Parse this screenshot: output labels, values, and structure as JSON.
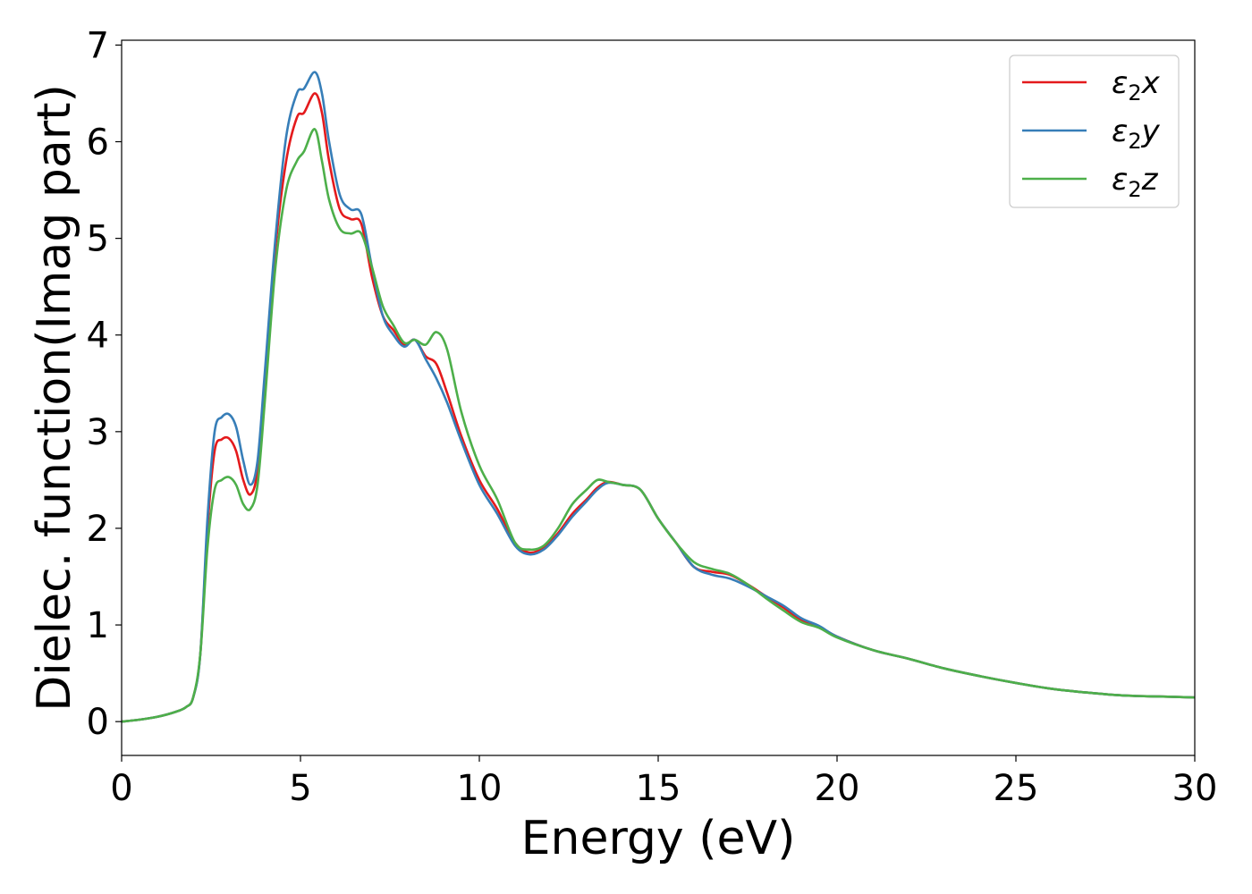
{
  "chart_data": {
    "type": "line",
    "xlabel": "Energy (eV)",
    "ylabel": "Dielec. function(Imag part)",
    "xlim": [
      0,
      30
    ],
    "ylim": [
      -0.35,
      7.05
    ],
    "xticks": [
      "0",
      "5",
      "10",
      "15",
      "20",
      "25",
      "30"
    ],
    "yticks": [
      "0",
      "1",
      "2",
      "3",
      "4",
      "5",
      "6",
      "7"
    ],
    "grid": false,
    "legend_position": "top-right",
    "series": [
      {
        "name": "ε₂x",
        "legend_base": "ε",
        "legend_sub": "2",
        "legend_tail": "x",
        "color": "#e41a1c",
        "x": [
          0,
          0.5,
          1.0,
          1.5,
          1.8,
          2.0,
          2.2,
          2.4,
          2.6,
          2.8,
          3.0,
          3.2,
          3.4,
          3.6,
          3.8,
          4.0,
          4.3,
          4.6,
          4.9,
          5.1,
          5.4,
          5.6,
          5.8,
          6.1,
          6.4,
          6.7,
          7.0,
          7.3,
          7.6,
          7.9,
          8.2,
          8.5,
          8.8,
          9.1,
          9.5,
          10.0,
          10.5,
          11.0,
          11.4,
          11.8,
          12.2,
          12.6,
          13.0,
          13.3,
          13.6,
          14.0,
          14.5,
          15.0,
          15.5,
          16.0,
          16.5,
          17.0,
          17.5,
          18.0,
          18.5,
          19.0,
          19.5,
          20.0,
          21.0,
          22.0,
          23.0,
          24.0,
          25.0,
          26.0,
          27.0,
          28.0,
          29.0,
          30.0
        ],
        "y": [
          0.0,
          0.02,
          0.05,
          0.1,
          0.15,
          0.25,
          0.7,
          2.0,
          2.8,
          2.92,
          2.93,
          2.8,
          2.5,
          2.35,
          2.6,
          3.5,
          4.9,
          5.8,
          6.25,
          6.3,
          6.5,
          6.3,
          5.8,
          5.3,
          5.2,
          5.15,
          4.6,
          4.2,
          4.05,
          3.9,
          3.95,
          3.78,
          3.7,
          3.4,
          2.95,
          2.5,
          2.2,
          1.85,
          1.75,
          1.8,
          1.95,
          2.15,
          2.3,
          2.42,
          2.48,
          2.45,
          2.4,
          2.1,
          1.85,
          1.6,
          1.55,
          1.52,
          1.42,
          1.3,
          1.18,
          1.05,
          0.98,
          0.88,
          0.74,
          0.65,
          0.55,
          0.47,
          0.4,
          0.34,
          0.3,
          0.27,
          0.26,
          0.25
        ]
      },
      {
        "name": "ε₂y",
        "legend_base": "ε",
        "legend_sub": "2",
        "legend_tail": "y",
        "color": "#377eb8",
        "x": [
          0,
          0.5,
          1.0,
          1.5,
          1.8,
          2.0,
          2.2,
          2.4,
          2.6,
          2.8,
          3.0,
          3.2,
          3.4,
          3.6,
          3.8,
          4.0,
          4.3,
          4.6,
          4.9,
          5.1,
          5.4,
          5.6,
          5.8,
          6.1,
          6.4,
          6.7,
          7.0,
          7.3,
          7.6,
          7.9,
          8.2,
          8.5,
          8.8,
          9.1,
          9.5,
          10.0,
          10.5,
          11.0,
          11.4,
          11.8,
          12.2,
          12.6,
          13.0,
          13.3,
          13.6,
          14.0,
          14.5,
          15.0,
          15.5,
          16.0,
          16.5,
          17.0,
          17.5,
          18.0,
          18.5,
          19.0,
          19.5,
          20.0,
          21.0,
          22.0,
          23.0,
          24.0,
          25.0,
          26.0,
          27.0,
          28.0,
          29.0,
          30.0
        ],
        "y": [
          0.0,
          0.02,
          0.05,
          0.1,
          0.15,
          0.25,
          0.7,
          2.1,
          3.0,
          3.15,
          3.18,
          3.05,
          2.7,
          2.45,
          2.7,
          3.6,
          5.0,
          6.05,
          6.5,
          6.55,
          6.72,
          6.5,
          6.0,
          5.45,
          5.3,
          5.25,
          4.7,
          4.2,
          4.0,
          3.88,
          3.95,
          3.75,
          3.55,
          3.3,
          2.9,
          2.45,
          2.15,
          1.82,
          1.73,
          1.78,
          1.93,
          2.12,
          2.28,
          2.4,
          2.47,
          2.45,
          2.4,
          2.1,
          1.85,
          1.6,
          1.52,
          1.48,
          1.4,
          1.3,
          1.2,
          1.07,
          0.99,
          0.88,
          0.74,
          0.65,
          0.55,
          0.47,
          0.4,
          0.34,
          0.3,
          0.27,
          0.26,
          0.25
        ]
      },
      {
        "name": "ε₂z",
        "legend_base": "ε",
        "legend_sub": "2",
        "legend_tail": "z",
        "color": "#4daf4a",
        "x": [
          0,
          0.5,
          1.0,
          1.5,
          1.8,
          2.0,
          2.2,
          2.4,
          2.6,
          2.8,
          3.0,
          3.2,
          3.4,
          3.6,
          3.8,
          4.0,
          4.3,
          4.6,
          4.9,
          5.1,
          5.4,
          5.6,
          5.8,
          6.1,
          6.4,
          6.7,
          7.0,
          7.3,
          7.6,
          7.9,
          8.2,
          8.5,
          8.8,
          9.1,
          9.5,
          10.0,
          10.5,
          11.0,
          11.4,
          11.8,
          12.2,
          12.6,
          13.0,
          13.3,
          13.6,
          14.0,
          14.5,
          15.0,
          15.5,
          16.0,
          16.5,
          17.0,
          17.5,
          18.0,
          18.5,
          19.0,
          19.5,
          20.0,
          21.0,
          22.0,
          23.0,
          24.0,
          25.0,
          26.0,
          27.0,
          28.0,
          29.0,
          30.0
        ],
        "y": [
          0.0,
          0.02,
          0.05,
          0.1,
          0.15,
          0.25,
          0.7,
          1.8,
          2.4,
          2.5,
          2.53,
          2.45,
          2.25,
          2.2,
          2.45,
          3.3,
          4.7,
          5.5,
          5.8,
          5.9,
          6.13,
          5.8,
          5.4,
          5.1,
          5.05,
          5.05,
          4.7,
          4.3,
          4.1,
          3.92,
          3.95,
          3.9,
          4.03,
          3.85,
          3.2,
          2.65,
          2.3,
          1.85,
          1.78,
          1.82,
          2.0,
          2.25,
          2.4,
          2.5,
          2.48,
          2.45,
          2.4,
          2.1,
          1.85,
          1.65,
          1.58,
          1.53,
          1.42,
          1.28,
          1.15,
          1.03,
          0.97,
          0.87,
          0.74,
          0.65,
          0.55,
          0.47,
          0.4,
          0.34,
          0.3,
          0.27,
          0.26,
          0.25
        ]
      }
    ]
  }
}
